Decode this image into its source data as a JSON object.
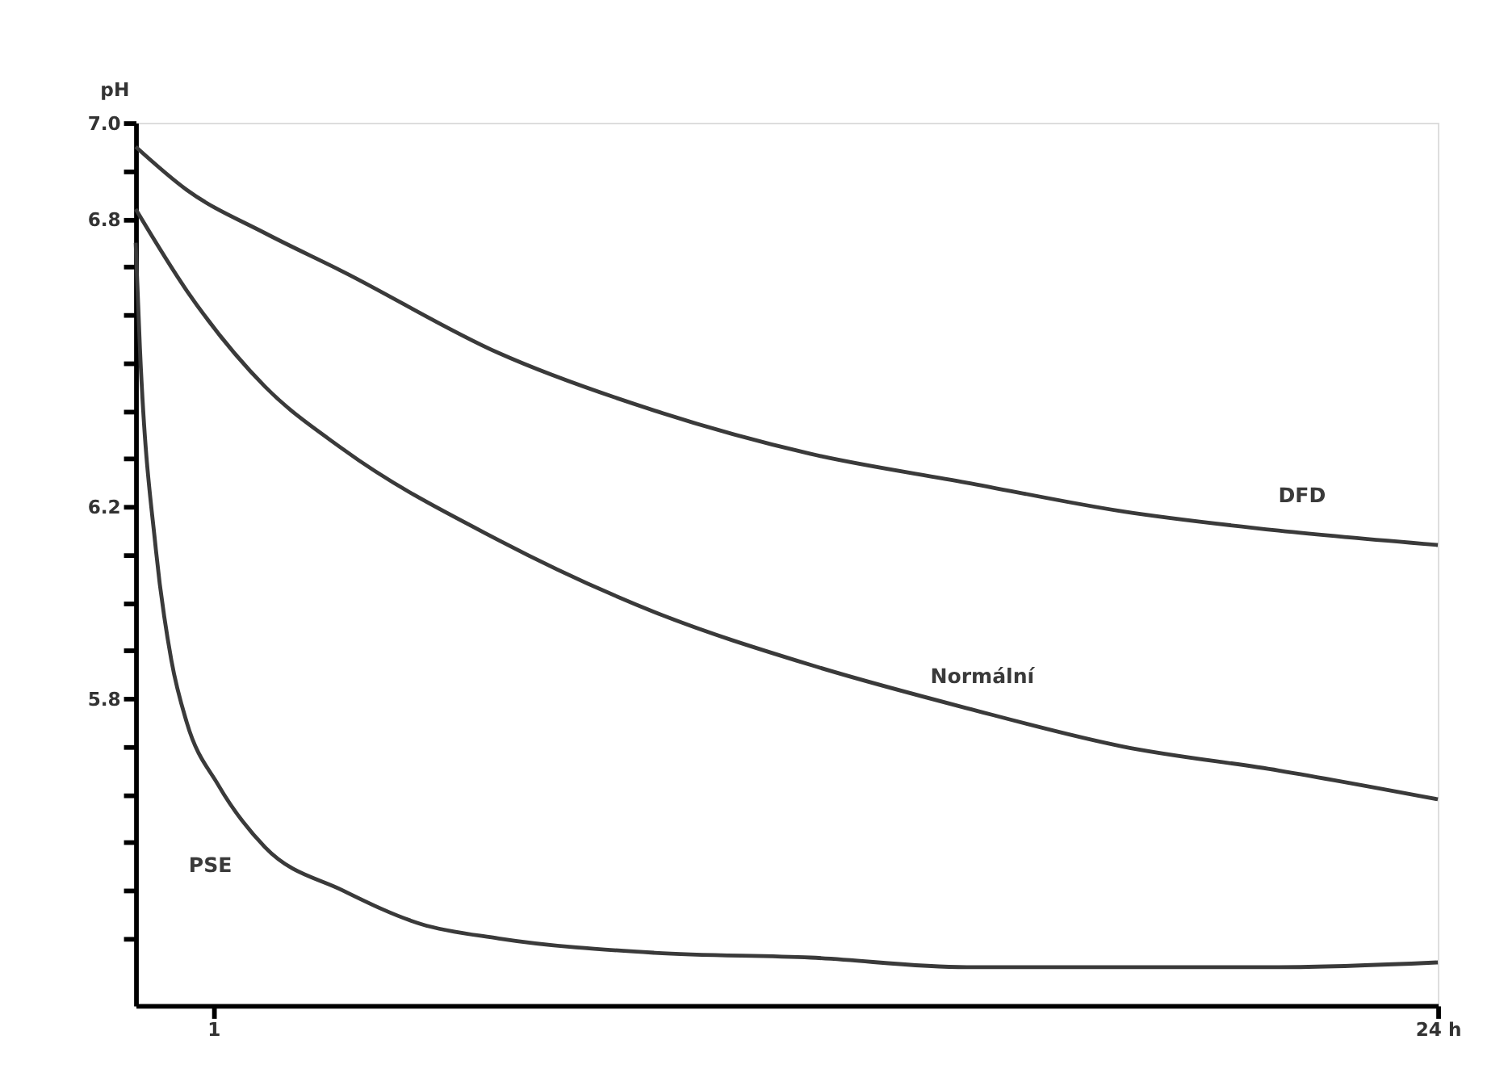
{
  "chart_data": {
    "type": "line",
    "ylabel": "pH",
    "xlim": [
      -0.46,
      24
    ],
    "xticks": [
      1,
      {
        "value": 24,
        "label": "24 h"
      }
    ],
    "ylim": [
      5.16,
      7.0
    ],
    "yticks": [
      {
        "value": 5.3,
        "label": null
      },
      {
        "value": 5.4,
        "label": null
      },
      {
        "value": 5.5,
        "label": null
      },
      {
        "value": 5.6,
        "label": null
      },
      {
        "value": 5.7,
        "label": null
      },
      5.8,
      {
        "value": 5.9,
        "label": null
      },
      {
        "value": 6.0,
        "label": null
      },
      {
        "value": 6.1,
        "label": null
      },
      6.2,
      {
        "value": 6.3,
        "label": null
      },
      {
        "value": 6.4,
        "label": null
      },
      {
        "value": 6.5,
        "label": null
      },
      {
        "value": 6.6,
        "label": null
      },
      {
        "value": 6.7,
        "label": null
      },
      6.8,
      {
        "value": 6.9,
        "label": null
      },
      {
        "value": 7.0,
        "label": "7.0"
      }
    ],
    "grid": false,
    "marker": "none",
    "line_style": "solid",
    "series": [
      {
        "name": "DFD",
        "color": "#3a3a3a",
        "x": [
          -0.46,
          0.5,
          1.97,
          3.43,
          6.36,
          9.29,
          12.22,
          15.15,
          18.08,
          21.01,
          24
        ],
        "values": [
          6.95,
          6.86,
          6.77,
          6.69,
          6.52,
          6.4,
          6.31,
          6.25,
          6.19,
          6.15,
          6.12
        ]
      },
      {
        "name": "Normální",
        "color": "#3a3a3a",
        "x": [
          -0.46,
          0.5,
          1.97,
          3.43,
          6.36,
          9.29,
          12.22,
          15.15,
          18.08,
          21.01,
          24
        ],
        "values": [
          6.82,
          6.65,
          6.45,
          6.32,
          6.13,
          5.98,
          5.87,
          5.78,
          5.7,
          5.65,
          5.59
        ]
      },
      {
        "name": "PSE",
        "color": "#3a3a3a",
        "x": [
          -0.46,
          -0.38,
          -0.08,
          0.21,
          0.5,
          1.09,
          1.97,
          3.43,
          4.9,
          6.36,
          9.29,
          12.22,
          15.15,
          18.08,
          21.01,
          24
        ],
        "values": [
          6.75,
          6.53,
          6.11,
          5.88,
          5.75,
          5.62,
          5.49,
          5.4,
          5.33,
          5.3,
          5.27,
          5.26,
          5.24,
          5.24,
          5.24,
          5.25
        ]
      }
    ]
  }
}
